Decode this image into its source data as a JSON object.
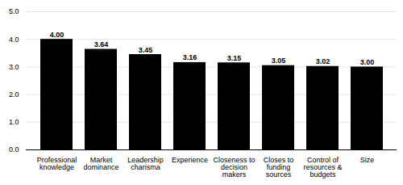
{
  "chart_data": {
    "type": "bar",
    "categories": [
      "Professional\nknowledge",
      "Market\ndominance",
      "Leadership\ncharisma",
      "Experience",
      "Closeness to\ndecision\nmakers",
      "Closes to\nfunding\nsources",
      "Control of\nresources &\nbudgets",
      "Size"
    ],
    "values": [
      4.0,
      3.64,
      3.45,
      3.16,
      3.15,
      3.05,
      3.02,
      3.0
    ],
    "value_labels": [
      "4.00",
      "3.64",
      "3.45",
      "3.16",
      "3.15",
      "3.05",
      "3.02",
      "3.00"
    ],
    "data_labels": true,
    "ylim": [
      0.0,
      5.0
    ],
    "yticks": [
      {
        "value": 0,
        "label": "0.0"
      },
      {
        "value": 1,
        "label": "1.0"
      },
      {
        "value": 2,
        "label": "2.0"
      },
      {
        "value": 3,
        "label": "3.0"
      },
      {
        "value": 4,
        "label": "4.0"
      },
      {
        "value": 5,
        "label": "5.0"
      }
    ],
    "grid": true
  }
}
